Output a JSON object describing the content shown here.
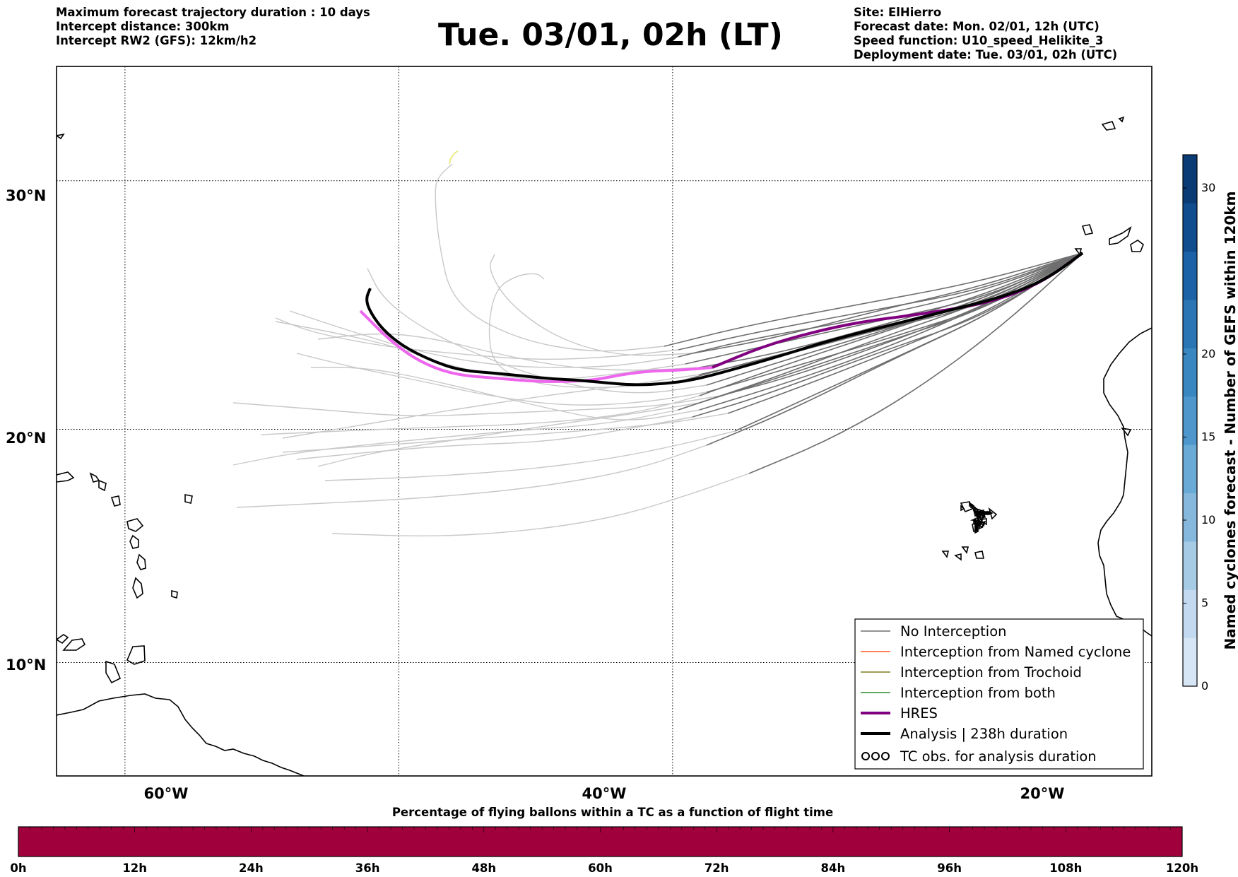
{
  "header": {
    "left": [
      "Maximum forecast trajectory duration : 10 days",
      "Intercept distance: 300km",
      "Intercept RW2 (GFS):  12km/h2"
    ],
    "title": "Tue. 03/01, 02h (LT)",
    "right": [
      "Site: ElHierro",
      "Forecast date: Mon. 02/01, 12h (UTC)",
      "Speed function: U10_speed_Helikite_3",
      "Deployment date: Tue. 03/01, 02h (UTC)"
    ]
  },
  "map": {
    "lon_range": [
      -65,
      15
    ],
    "lat_range": [
      5,
      34.3
    ],
    "lat_ticks": [
      {
        "value": 30,
        "label": "30°N"
      },
      {
        "value": 20,
        "label": "20°N"
      },
      {
        "value": 10,
        "label": "10°N"
      }
    ],
    "lon_ticks": [
      {
        "value": -60,
        "label": "60°W"
      },
      {
        "value": -40,
        "label": "40°W"
      },
      {
        "value": -20,
        "label": "20°W"
      }
    ],
    "grid": true,
    "colors": {
      "no_interception": "#6e6e6e",
      "ensemble_tail": "#c8c8c8",
      "named_cyclone": "#ff5a1e",
      "trochoid": "#7f7f1e",
      "both": "#2e8b2e",
      "hres": "#800080",
      "hres_tail": "#ee66ee",
      "analysis": "#000000"
    }
  },
  "legend": {
    "placement": "bottom-right",
    "items": [
      {
        "label": "No Interception",
        "color": "#6e6e6e",
        "style": "thin"
      },
      {
        "label": "Interception from Named cyclone",
        "color": "#ff5a1e",
        "style": "thin"
      },
      {
        "label": "Interception from Trochoid",
        "color": "#7f7f1e",
        "style": "thin"
      },
      {
        "label": "Interception from both",
        "color": "#2e8b2e",
        "style": "thin"
      },
      {
        "label": "HRES",
        "color": "#800080",
        "style": "thick"
      },
      {
        "label": "Analysis | 238h duration",
        "color": "#000000",
        "style": "thick"
      },
      {
        "label": "TC obs. for analysis duration",
        "color": "#000000",
        "style": "marker"
      }
    ]
  },
  "colorbar": {
    "label": "Named cyclones forecast - Number of GEFS within 120km",
    "ticks": [
      "0",
      "5",
      "10",
      "15",
      "20",
      "30"
    ],
    "colors": [
      "#d6e6f5",
      "#c2d9ef",
      "#a6cbe5",
      "#86b8dd",
      "#6aaad7",
      "#4d97cc",
      "#3987c0",
      "#2a75b4",
      "#1c62a6",
      "#0f4d8f",
      "#0a3b75"
    ]
  },
  "bottom_bar": {
    "title": "Percentage of flying ballons within a TC as a function of flight time",
    "ticks": [
      "0h",
      "12h",
      "24h",
      "36h",
      "48h",
      "60h",
      "72h",
      "84h",
      "96h",
      "108h",
      "120h"
    ],
    "color": "#a0003c"
  }
}
